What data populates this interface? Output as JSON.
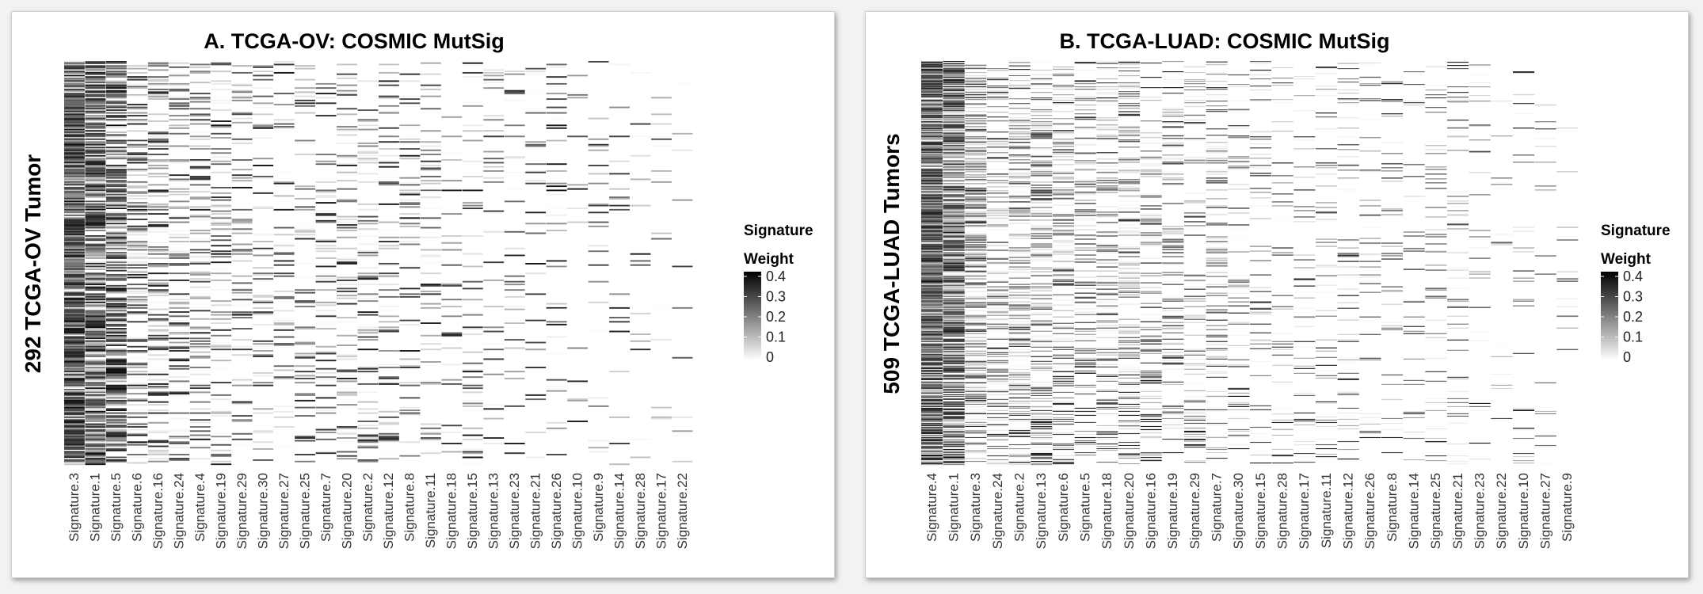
{
  "chart_data": [
    {
      "type": "heatmap",
      "title": "A. TCGA-OV: COSMIC MutSig",
      "ylabel": "292 TCGA-OV Tumor",
      "legend_title_line1": "Signature",
      "legend_title_line2": "Weight",
      "legend_ticks": [
        "0.4",
        "0.3",
        "0.2",
        "0.1",
        "0"
      ],
      "value_range": [
        0,
        0.4
      ],
      "n_samples": 292,
      "legend_placement": "right",
      "columns": [
        "Signature.3",
        "Signature.1",
        "Signature.5",
        "Signature.6",
        "Signature.16",
        "Signature.24",
        "Signature.4",
        "Signature.19",
        "Signature.29",
        "Signature.30",
        "Signature.27",
        "Signature.25",
        "Signature.7",
        "Signature.20",
        "Signature.2",
        "Signature.12",
        "Signature.8",
        "Signature.11",
        "Signature.18",
        "Signature.15",
        "Signature.13",
        "Signature.23",
        "Signature.21",
        "Signature.26",
        "Signature.10",
        "Signature.9",
        "Signature.14",
        "Signature.28",
        "Signature.17",
        "Signature.22"
      ],
      "column_activity": [
        0.95,
        0.85,
        0.7,
        0.42,
        0.38,
        0.3,
        0.3,
        0.28,
        0.24,
        0.22,
        0.16,
        0.18,
        0.22,
        0.24,
        0.24,
        0.2,
        0.18,
        0.17,
        0.14,
        0.15,
        0.13,
        0.1,
        0.12,
        0.1,
        0.08,
        0.09,
        0.07,
        0.05,
        0.04,
        0.04
      ]
    },
    {
      "type": "heatmap",
      "title": "B. TCGA-LUAD: COSMIC MutSig",
      "ylabel": "509 TCGA-LUAD Tumors",
      "legend_title_line1": "Signature",
      "legend_title_line2": "Weight",
      "legend_ticks": [
        "0.4",
        "0.3",
        "0.2",
        "0.1",
        "0"
      ],
      "value_range": [
        0,
        0.4
      ],
      "n_samples": 509,
      "legend_placement": "right",
      "columns": [
        "Signature.4",
        "Signature.1",
        "Signature.3",
        "Signature.24",
        "Signature.2",
        "Signature.13",
        "Signature.6",
        "Signature.5",
        "Signature.18",
        "Signature.20",
        "Signature.16",
        "Signature.19",
        "Signature.29",
        "Signature.7",
        "Signature.30",
        "Signature.15",
        "Signature.28",
        "Signature.17",
        "Signature.11",
        "Signature.12",
        "Signature.26",
        "Signature.8",
        "Signature.14",
        "Signature.25",
        "Signature.21",
        "Signature.23",
        "Signature.22",
        "Signature.10",
        "Signature.27",
        "Signature.9"
      ],
      "column_activity": [
        0.9,
        0.75,
        0.55,
        0.35,
        0.4,
        0.4,
        0.35,
        0.25,
        0.25,
        0.3,
        0.2,
        0.18,
        0.18,
        0.22,
        0.16,
        0.12,
        0.1,
        0.1,
        0.12,
        0.12,
        0.08,
        0.08,
        0.07,
        0.1,
        0.1,
        0.07,
        0.05,
        0.05,
        0.03,
        0.03
      ]
    }
  ]
}
